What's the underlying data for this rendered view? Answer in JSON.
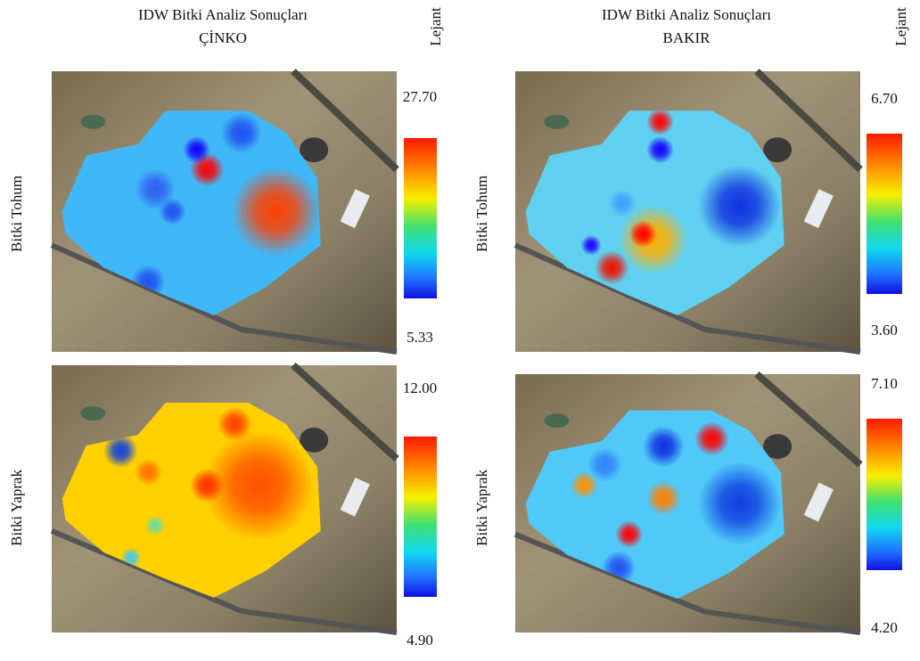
{
  "panels": [
    {
      "title": "IDW Bitki Analiz Sonuçları",
      "subtitle": "ÇİNKO",
      "legend_title": "Lejant",
      "maps": [
        {
          "row_label": "Bitki Tohum",
          "max_label": "27.70",
          "min_label": "5.33"
        },
        {
          "row_label": "Bitki Yaprak",
          "max_label": "12.00",
          "min_label": "4.90"
        }
      ]
    },
    {
      "title": "IDW Bitki Analiz Sonuçları",
      "subtitle": "BAKIR",
      "legend_title": "Lejant",
      "maps": [
        {
          "row_label": "Bitki Tohum",
          "max_label": "6.70",
          "min_label": "3.60"
        },
        {
          "row_label": "Bitki Yaprak",
          "max_label": "7.10",
          "min_label": "4.20"
        }
      ]
    }
  ]
}
